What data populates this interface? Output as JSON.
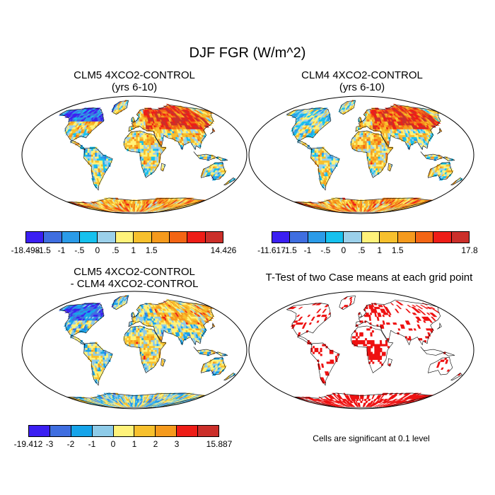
{
  "title": "DJF FGR (W/m^2)",
  "panels": {
    "clm5": {
      "title_line1": "CLM5 4XCO2-CONTROL",
      "title_line2": "(yrs 6-10)",
      "colorbar": {
        "colors": [
          "#3b1ff2",
          "#3f6ee0",
          "#2b9be8",
          "#16c1ee",
          "#9bd0ea",
          "#fff27a",
          "#f7c02d",
          "#f59a1d",
          "#f36514",
          "#ee1d17",
          "#cb2f2a"
        ],
        "labels": [
          "-18.498",
          "-1.5",
          "-1",
          "-.5",
          "0",
          ".5",
          "1",
          "1.5",
          "14.426"
        ]
      }
    },
    "clm4": {
      "title_line1": "CLM4 4XCO2-CONTROL",
      "title_line2": "(yrs 6-10)",
      "colorbar": {
        "colors": [
          "#3b1ff2",
          "#3f6ee0",
          "#2b9be8",
          "#16c1ee",
          "#9bd0ea",
          "#fff27a",
          "#f7c02d",
          "#f59a1d",
          "#f36514",
          "#ee1d17",
          "#cb2f2a"
        ],
        "labels": [
          "-11.617",
          "-1.5",
          "-1",
          "-.5",
          "0",
          ".5",
          "1",
          "1.5",
          "17.8"
        ]
      }
    },
    "diff": {
      "title_line1": "CLM5 4XCO2-CONTROL",
      "title_line2": "- CLM4 4XCO2-CONTROL",
      "colorbar": {
        "colors": [
          "#3b1ff2",
          "#3f6ee0",
          "#16a4ea",
          "#8ecbe8",
          "#fff27a",
          "#f7c02d",
          "#f59a1d",
          "#ee1d17",
          "#cb2f2a"
        ],
        "labels": [
          "-19.412",
          "-3",
          "-2",
          "-1",
          "0",
          "1",
          "2",
          "3",
          "15.887"
        ]
      }
    },
    "ttest": {
      "title": "T-Test of two Case means at each grid point",
      "note": "Cells are significant at 0.1 level",
      "sig_color": "#ee1010"
    }
  }
}
